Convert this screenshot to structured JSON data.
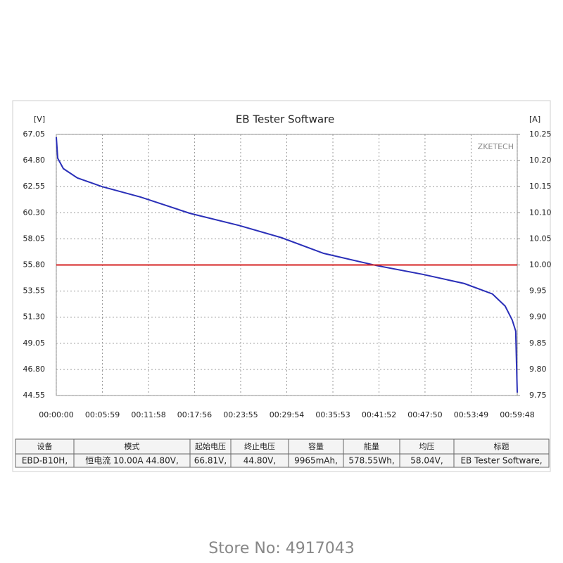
{
  "chart_data": {
    "type": "line",
    "title": "EB Tester Software",
    "ylabel": "[V]",
    "y2label": "[A]",
    "watermark": "ZKETECH",
    "xlim": [
      0,
      3588
    ],
    "ylim": [
      44.55,
      67.05
    ],
    "y2lim": [
      9.75,
      10.25
    ],
    "grid": true,
    "xticks": [
      {
        "value": 0,
        "label": "00:00:00"
      },
      {
        "value": 359,
        "label": "00:05:59"
      },
      {
        "value": 718,
        "label": "00:11:58"
      },
      {
        "value": 1076,
        "label": "00:17:56"
      },
      {
        "value": 1435,
        "label": "00:23:55"
      },
      {
        "value": 1794,
        "label": "00:29:54"
      },
      {
        "value": 2153,
        "label": "00:35:53"
      },
      {
        "value": 2512,
        "label": "00:41:52"
      },
      {
        "value": 2870,
        "label": "00:47:50"
      },
      {
        "value": 3229,
        "label": "00:53:49"
      },
      {
        "value": 3588,
        "label": "00:59:48"
      }
    ],
    "yticks": [
      67.05,
      {
        "value": 64.8,
        "label": "64.80"
      },
      62.55,
      {
        "value": 60.3,
        "label": "60.30"
      },
      58.05,
      {
        "value": 55.8,
        "label": "55.80"
      },
      53.55,
      {
        "value": 51.3,
        "label": "51.30"
      },
      49.05,
      {
        "value": 46.8,
        "label": "46.80"
      },
      44.55
    ],
    "y2ticks": [
      10.25,
      {
        "value": 10.2,
        "label": "10.20"
      },
      10.15,
      {
        "value": 10.1,
        "label": "10.10"
      },
      10.05,
      {
        "value": 10,
        "label": "10.00"
      },
      9.95,
      {
        "value": 9.9,
        "label": "9.90"
      },
      9.85,
      {
        "value": 9.8,
        "label": "9.80"
      },
      9.75
    ],
    "series": [
      {
        "color": "#2a2fb8",
        "x": [
          0,
          11,
          55,
          164,
          356,
          657,
          1040,
          1424,
          1753,
          2081,
          2492,
          2848,
          3176,
          3395,
          3494,
          3549,
          3576,
          3588
        ],
        "values": [
          66.81,
          65.0,
          64.1,
          63.3,
          62.55,
          61.65,
          60.25,
          59.2,
          58.15,
          56.8,
          55.75,
          55.0,
          54.2,
          53.3,
          52.25,
          51.05,
          50.1,
          44.8
        ]
      },
      {
        "color": "#d42020",
        "axis": "y2",
        "x": [
          0,
          3588
        ],
        "values": [
          10,
          10
        ]
      }
    ]
  },
  "table": {
    "headers": [
      "设备",
      "模式",
      "起始电压",
      "终止电压",
      "容量",
      "能量",
      "均压",
      "标题"
    ],
    "rows": [
      [
        "EBD-B10H,",
        "恒电流  10.00A  44.80V,",
        "66.81V,",
        "44.80V,",
        "9965mAh,",
        "578.55Wh,",
        "58.04V,",
        "EB Tester Software,"
      ]
    ]
  },
  "footer": "Store No: 4917043"
}
